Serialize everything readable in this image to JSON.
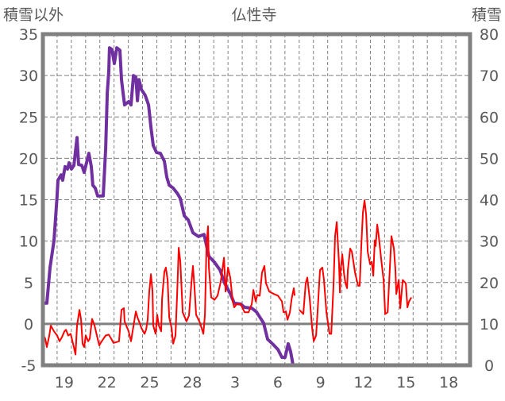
{
  "chart_data": {
    "type": "line",
    "title": "仏性寺",
    "ylabel_left": "積雪以外",
    "ylabel_right": "積雪",
    "x_range_days": [
      0,
      30
    ],
    "x_tick_labels": [
      {
        "day": 1,
        "label": "19"
      },
      {
        "day": 4,
        "label": "22"
      },
      {
        "day": 7,
        "label": "25"
      },
      {
        "day": 10,
        "label": "28"
      },
      {
        "day": 13,
        "label": "3"
      },
      {
        "day": 16,
        "label": "6"
      },
      {
        "day": 19,
        "label": "9"
      },
      {
        "day": 22,
        "label": "12"
      },
      {
        "day": 25,
        "label": "15"
      },
      {
        "day": 28,
        "label": "18"
      }
    ],
    "ylim_left": [
      -5,
      35
    ],
    "yticks_left": [
      "35",
      "30",
      "25",
      "20",
      "15",
      "10",
      "5",
      "0",
      "-5"
    ],
    "ylim_right": [
      0,
      80
    ],
    "yticks_right": [
      "80",
      "70",
      "60",
      "50",
      "40",
      "30",
      "20",
      "10",
      "0"
    ],
    "grid": true,
    "series": [
      {
        "name": "積雪",
        "axis": "right",
        "color": "#7030A0",
        "segments": [
          [
            [
              0,
              15.0
            ],
            [
              0.28,
              15.0
            ],
            [
              0.5,
              23.6
            ],
            [
              0.78,
              30.1
            ],
            [
              1.0,
              40.9
            ],
            [
              1.06,
              44.7
            ],
            [
              1.28,
              46.0
            ],
            [
              1.39,
              44.7
            ],
            [
              1.56,
              48.0
            ],
            [
              1.73,
              47.4
            ],
            [
              1.84,
              48.9
            ],
            [
              2.01,
              47.4
            ],
            [
              2.18,
              48.3
            ],
            [
              2.4,
              55.0
            ],
            [
              2.51,
              48.5
            ],
            [
              2.73,
              48.3
            ],
            [
              2.9,
              46.6
            ],
            [
              3.23,
              51.2
            ],
            [
              3.4,
              48.0
            ],
            [
              3.51,
              43.5
            ],
            [
              3.68,
              42.8
            ],
            [
              3.85,
              40.9
            ],
            [
              4.24,
              40.9
            ],
            [
              4.41,
              52.4
            ],
            [
              4.52,
              65.8
            ],
            [
              4.63,
              71.0
            ],
            [
              4.68,
              76.7
            ],
            [
              4.85,
              76.3
            ],
            [
              5.02,
              72.9
            ],
            [
              5.19,
              76.7
            ],
            [
              5.41,
              76.1
            ],
            [
              5.52,
              69.0
            ],
            [
              5.63,
              65.8
            ],
            [
              5.74,
              62.9
            ],
            [
              6.02,
              63.7
            ],
            [
              6.19,
              62.9
            ],
            [
              6.36,
              70.0
            ],
            [
              6.53,
              69.6
            ],
            [
              6.64,
              63.9
            ],
            [
              6.75,
              69.0
            ],
            [
              6.92,
              66.6
            ],
            [
              7.19,
              65.2
            ],
            [
              7.42,
              62.9
            ],
            [
              7.59,
              57.5
            ],
            [
              7.75,
              53.1
            ],
            [
              7.98,
              51.4
            ],
            [
              8.25,
              51.2
            ],
            [
              8.53,
              49.3
            ],
            [
              8.7,
              45.5
            ],
            [
              8.87,
              43.5
            ],
            [
              9.15,
              42.8
            ],
            [
              9.43,
              41.6
            ],
            [
              9.65,
              40.3
            ],
            [
              9.93,
              36.1
            ],
            [
              10.21,
              35.1
            ],
            [
              10.54,
              32.0
            ],
            [
              10.93,
              31.1
            ],
            [
              11.32,
              31.6
            ],
            [
              11.66,
              26.3
            ],
            [
              12.05,
              24.9
            ],
            [
              12.44,
              23.0
            ],
            [
              12.77,
              19.8
            ],
            [
              13.16,
              17.3
            ],
            [
              13.44,
              15.0
            ],
            [
              13.89,
              14.8
            ],
            [
              14.17,
              14.0
            ],
            [
              14.67,
              13.8
            ],
            [
              15.0,
              12.9
            ],
            [
              15.5,
              10.2
            ],
            [
              15.78,
              6.3
            ],
            [
              16.12,
              5.2
            ],
            [
              16.51,
              3.8
            ],
            [
              16.79,
              1.9
            ],
            [
              17.01,
              1.9
            ],
            [
              17.23,
              5.2
            ],
            [
              17.4,
              3.3
            ],
            [
              17.57,
              0
            ]
          ],
          [
            [
              17.9,
              0
            ],
            [
              26.0,
              0
            ]
          ]
        ]
      },
      {
        "name": "積雪以外",
        "axis": "left",
        "color": "#FF0000",
        "segments": [
          [
            [
              0,
              -1.2
            ],
            [
              0.17,
              -1.8
            ],
            [
              0.28,
              -2.8
            ],
            [
              0.45,
              -1.4
            ],
            [
              0.56,
              -0.2
            ],
            [
              0.78,
              -0.9
            ],
            [
              1.0,
              -1.4
            ],
            [
              1.17,
              -2.1
            ],
            [
              1.34,
              -1.6
            ],
            [
              1.51,
              -0.9
            ],
            [
              1.62,
              -0.7
            ],
            [
              1.78,
              -1.4
            ],
            [
              1.95,
              -1.2
            ],
            [
              2.12,
              -2.4
            ],
            [
              2.29,
              -3.7
            ],
            [
              2.4,
              -0.2
            ],
            [
              2.57,
              1.7
            ],
            [
              2.68,
              0.5
            ],
            [
              2.79,
              -2.4
            ],
            [
              2.9,
              -2.8
            ],
            [
              3.01,
              -1.4
            ],
            [
              3.18,
              -2.1
            ],
            [
              3.29,
              -1.8
            ],
            [
              3.46,
              0.6
            ],
            [
              3.63,
              -0.2
            ],
            [
              3.79,
              -1.4
            ],
            [
              3.96,
              -2.6
            ],
            [
              4.13,
              -2.1
            ],
            [
              4.41,
              -1.4
            ],
            [
              4.63,
              -1.3
            ],
            [
              4.8,
              -1.8
            ],
            [
              4.96,
              -2.3
            ],
            [
              5.35,
              -2.1
            ],
            [
              5.52,
              1.7
            ],
            [
              5.69,
              1.9
            ],
            [
              5.74,
              0.3
            ],
            [
              6.02,
              -0.9
            ],
            [
              6.19,
              -2.1
            ],
            [
              6.3,
              -0.9
            ],
            [
              6.53,
              1.5
            ],
            [
              6.64,
              0.8
            ],
            [
              6.8,
              0.1
            ],
            [
              6.92,
              -0.5
            ],
            [
              7.14,
              -1.2
            ],
            [
              7.25,
              -0.7
            ],
            [
              7.36,
              0.5
            ],
            [
              7.47,
              3.9
            ],
            [
              7.59,
              6.0
            ],
            [
              7.7,
              3.9
            ],
            [
              7.75,
              -0.2
            ],
            [
              7.92,
              -1.2
            ],
            [
              8.03,
              1.1
            ],
            [
              8.14,
              -0.2
            ],
            [
              8.31,
              -0.9
            ],
            [
              8.37,
              3.0
            ],
            [
              8.53,
              6.3
            ],
            [
              8.64,
              6.8
            ],
            [
              8.76,
              5.3
            ],
            [
              8.87,
              0.8
            ],
            [
              9.04,
              -0.5
            ],
            [
              9.15,
              -2.4
            ],
            [
              9.31,
              -1.4
            ],
            [
              9.43,
              3.6
            ],
            [
              9.54,
              9.2
            ],
            [
              9.65,
              7.5
            ],
            [
              9.82,
              1.4
            ],
            [
              10.09,
              0.3
            ],
            [
              10.26,
              1.0
            ],
            [
              10.43,
              4.9
            ],
            [
              10.54,
              7.0
            ],
            [
              10.65,
              4.3
            ],
            [
              10.76,
              1.1
            ],
            [
              11.04,
              0.1
            ],
            [
              11.27,
              -1.2
            ],
            [
              11.38,
              1.1
            ],
            [
              11.49,
              9.7
            ],
            [
              11.6,
              11.8
            ],
            [
              11.66,
              6.8
            ],
            [
              11.82,
              3.2
            ],
            [
              12.05,
              2.9
            ],
            [
              12.27,
              3.4
            ],
            [
              12.49,
              5.1
            ],
            [
              12.72,
              8.0
            ],
            [
              12.83,
              3.9
            ],
            [
              13.0,
              6.8
            ],
            [
              13.16,
              5.6
            ],
            [
              13.33,
              2.7
            ],
            [
              13.44,
              2.0
            ],
            [
              13.61,
              2.4
            ],
            [
              13.89,
              2.4
            ],
            [
              14.17,
              1.4
            ],
            [
              14.45,
              1.4
            ],
            [
              14.67,
              2.4
            ],
            [
              14.78,
              4.1
            ],
            [
              14.95,
              2.7
            ],
            [
              15.06,
              3.5
            ],
            [
              15.23,
              3.4
            ],
            [
              15.39,
              6.2
            ],
            [
              15.56,
              7.0
            ],
            [
              15.67,
              4.9
            ],
            [
              15.9,
              3.9
            ],
            [
              16.23,
              3.6
            ],
            [
              16.51,
              3.4
            ],
            [
              16.79,
              2.7
            ],
            [
              16.9,
              1.4
            ],
            [
              17.07,
              1.5
            ],
            [
              17.18,
              0.5
            ],
            [
              17.35,
              1.4
            ],
            [
              17.46,
              2.9
            ],
            [
              17.62,
              4.3
            ],
            [
              17.68,
              3.4
            ]
          ],
          [
            [
              18.01,
              1.7
            ],
            [
              18.18,
              1.4
            ],
            [
              18.29,
              1.2
            ],
            [
              18.46,
              4.9
            ],
            [
              18.57,
              5.6
            ],
            [
              18.74,
              3.0
            ],
            [
              18.91,
              -0.5
            ],
            [
              19.02,
              -2.1
            ],
            [
              19.19,
              -1.4
            ],
            [
              19.3,
              1.7
            ],
            [
              19.46,
              6.5
            ],
            [
              19.63,
              6.8
            ],
            [
              19.74,
              5.3
            ],
            [
              19.91,
              1.4
            ],
            [
              20.13,
              -1.2
            ],
            [
              20.25,
              -1.2
            ],
            [
              20.41,
              4.6
            ],
            [
              20.52,
              10.6
            ],
            [
              20.64,
              12.3
            ],
            [
              20.8,
              7.2
            ],
            [
              20.86,
              3.8
            ],
            [
              20.91,
              6.5
            ],
            [
              21.03,
              8.4
            ],
            [
              21.14,
              6.2
            ],
            [
              21.25,
              4.9
            ],
            [
              21.36,
              4.3
            ],
            [
              21.42,
              6.5
            ],
            [
              21.58,
              9.1
            ],
            [
              21.7,
              8.7
            ],
            [
              21.92,
              6.2
            ],
            [
              22.14,
              4.6
            ],
            [
              22.25,
              4.6
            ],
            [
              22.36,
              9.4
            ],
            [
              22.48,
              13.5
            ],
            [
              22.59,
              14.9
            ],
            [
              22.7,
              13.2
            ],
            [
              22.81,
              8.7
            ],
            [
              22.98,
              7.2
            ],
            [
              23.09,
              7.5
            ],
            [
              23.2,
              5.8
            ],
            [
              23.31,
              10.1
            ],
            [
              23.37,
              9.4
            ],
            [
              23.48,
              12.0
            ],
            [
              23.59,
              10.6
            ],
            [
              23.76,
              7.8
            ],
            [
              23.93,
              5.3
            ],
            [
              24.04,
              1.2
            ],
            [
              24.21,
              1.4
            ],
            [
              24.37,
              6.8
            ],
            [
              24.48,
              10.6
            ],
            [
              24.65,
              9.1
            ],
            [
              24.76,
              6.5
            ],
            [
              24.82,
              3.6
            ],
            [
              24.99,
              5.3
            ],
            [
              25.1,
              1.9
            ],
            [
              25.27,
              5.3
            ],
            [
              25.49,
              4.9
            ],
            [
              25.6,
              2.0
            ],
            [
              25.71,
              2.7
            ],
            [
              25.88,
              3.2
            ]
          ]
        ]
      }
    ]
  }
}
